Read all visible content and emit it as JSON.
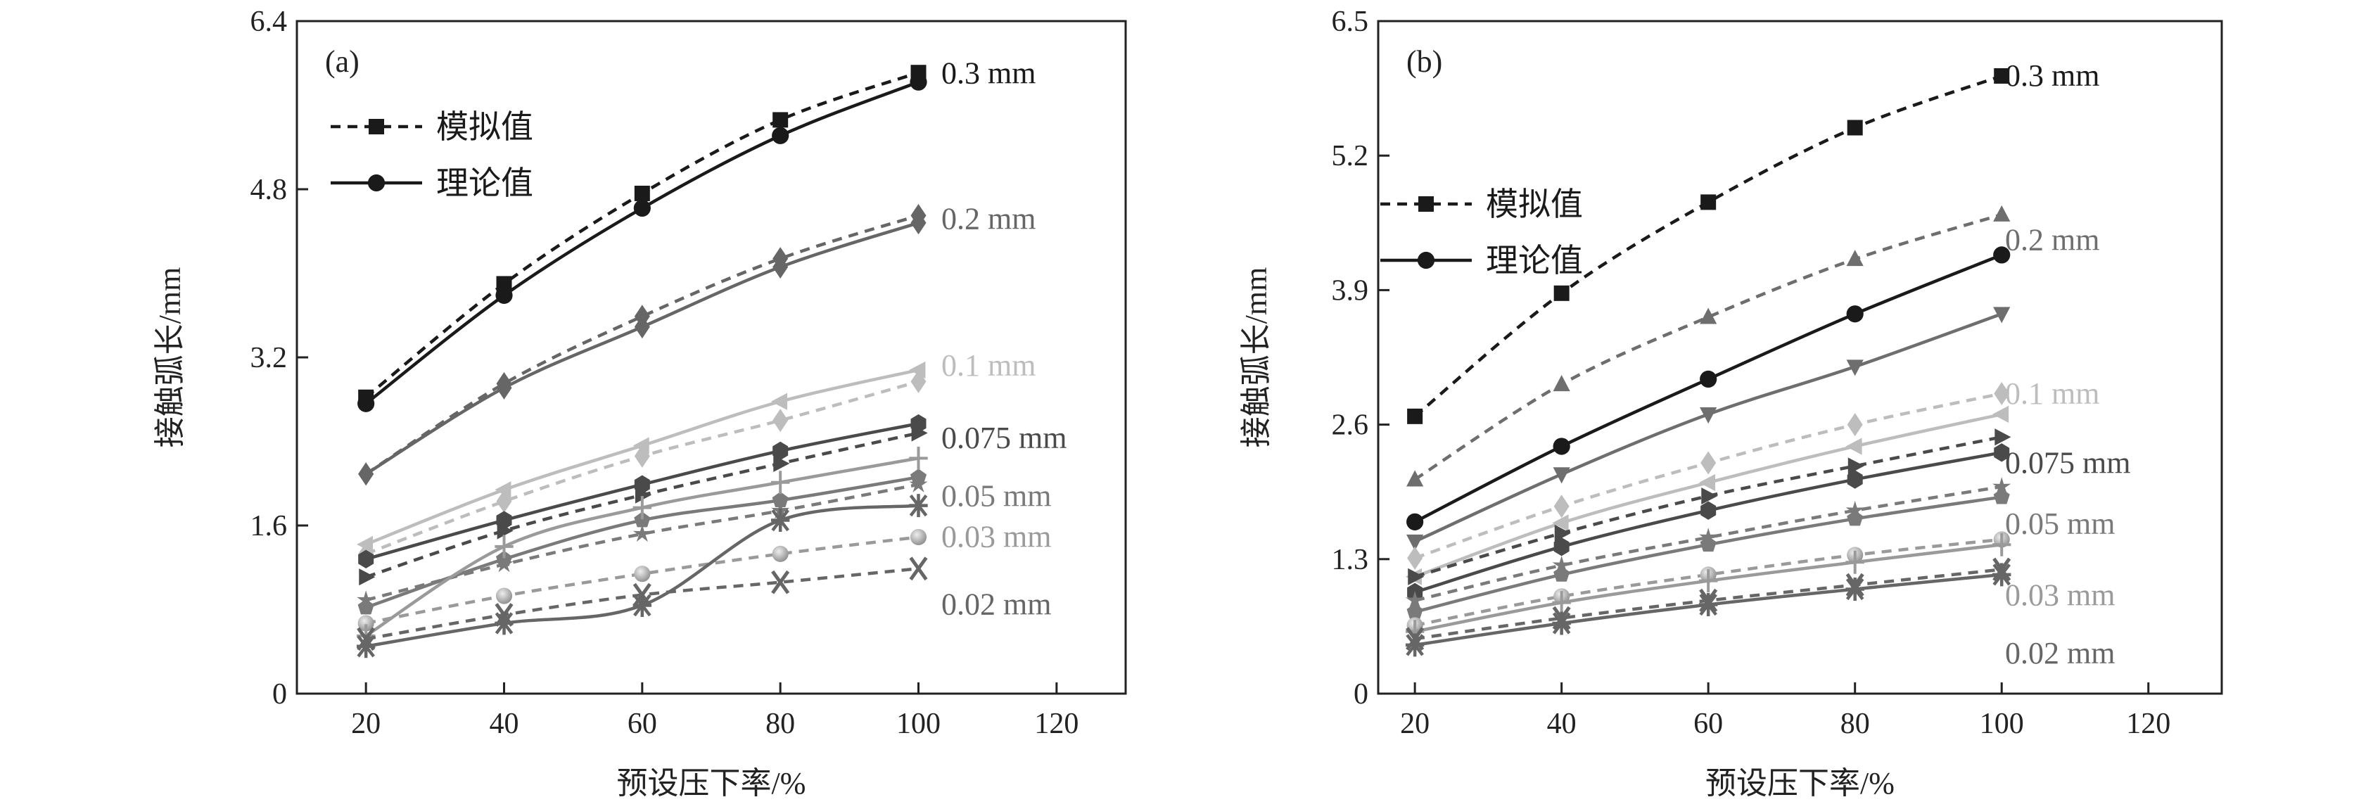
{
  "chart_data": [
    {
      "type": "line",
      "panel_label": "(a)",
      "xlabel": "预设压下率/%",
      "ylabel": "接触弧长/mm",
      "xlim": [
        10,
        130
      ],
      "ylim": [
        0,
        6.4
      ],
      "xticks": [
        20,
        40,
        60,
        80,
        100,
        120
      ],
      "yticks": [
        0,
        1.6,
        3.2,
        4.8,
        6.4
      ],
      "ytick_labels": [
        "0",
        "1.6",
        "3.2",
        "4.8",
        "6.4"
      ],
      "grid": false,
      "legend": {
        "placement": "top-left",
        "entries": [
          {
            "label": "模拟值",
            "style": "dashed",
            "marker": "square"
          },
          {
            "label": "理论值",
            "style": "solid",
            "marker": "circle"
          }
        ]
      },
      "x": [
        20,
        40,
        60,
        80,
        100
      ],
      "groups": [
        {
          "label": "0.3 mm",
          "color": "#1a1a1a",
          "simulated": {
            "marker": "square",
            "values": [
              2.82,
              3.9,
              4.76,
              5.46,
              5.91
            ]
          },
          "theoretical": {
            "marker": "circle",
            "values": [
              2.76,
              3.79,
              4.62,
              5.31,
              5.82
            ]
          }
        },
        {
          "label": "0.2 mm",
          "color": "#666666",
          "simulated": {
            "marker": "diamond",
            "values": [
              2.09,
              2.95,
              3.59,
              4.14,
              4.55
            ]
          },
          "theoretical": {
            "marker": "diamond",
            "values": [
              2.09,
              2.91,
              3.49,
              4.06,
              4.48
            ]
          }
        },
        {
          "label": "0.1 mm",
          "color": "#bdbdbd",
          "simulated": {
            "marker": "diamond",
            "values": [
              1.33,
              1.83,
              2.26,
              2.6,
              2.97
            ]
          },
          "theoretical": {
            "marker": "triangle-left",
            "values": [
              1.42,
              1.94,
              2.36,
              2.78,
              3.08
            ]
          }
        },
        {
          "label": "0.075 mm",
          "color": "#4a4a4a",
          "simulated": {
            "marker": "triangle-right",
            "values": [
              1.11,
              1.55,
              1.89,
              2.19,
              2.48
            ]
          },
          "theoretical": {
            "marker": "hexagon",
            "values": [
              1.28,
              1.65,
              1.99,
              2.31,
              2.57
            ]
          }
        },
        {
          "label": "0.05 mm",
          "color": "#7a7a7a",
          "simulated": {
            "marker": "star",
            "values": [
              0.89,
              1.23,
              1.52,
              1.74,
              1.99
            ]
          },
          "theoretical": {
            "marker": "pentagon",
            "values": [
              0.82,
              1.28,
              1.65,
              1.84,
              2.06
            ]
          }
        },
        {
          "label": "0.03 mm",
          "color": "#9a9a9a",
          "simulated": {
            "marker": "sphere",
            "values": [
              0.67,
              0.93,
              1.14,
              1.33,
              1.49
            ]
          },
          "theoretical": {
            "marker": "plus",
            "values": [
              0.55,
              1.4,
              1.77,
              2.01,
              2.24
            ]
          }
        },
        {
          "label": "0.02 mm",
          "color": "#666666",
          "simulated": {
            "marker": "x",
            "values": [
              0.52,
              0.75,
              0.94,
              1.06,
              1.19
            ]
          },
          "theoretical": {
            "marker": "asterisk",
            "values": [
              0.45,
              0.67,
              0.84,
              1.65,
              1.79
            ]
          }
        }
      ]
    },
    {
      "type": "line",
      "panel_label": "(b)",
      "xlabel": "预设压下率/%",
      "ylabel": "接触弧长/mm",
      "xlim": [
        15,
        130
      ],
      "ylim": [
        0,
        6.5
      ],
      "xticks": [
        20,
        40,
        60,
        80,
        100,
        120
      ],
      "yticks": [
        0,
        1.3,
        2.6,
        3.9,
        5.2,
        6.5
      ],
      "ytick_labels": [
        "0",
        "1.3",
        "2.6",
        "3.9",
        "5.2",
        "6.5"
      ],
      "grid": false,
      "legend": {
        "placement": "top-left",
        "entries": [
          {
            "label": "模拟值",
            "style": "dashed",
            "marker": "square"
          },
          {
            "label": "理论值",
            "style": "solid",
            "marker": "circle"
          }
        ]
      },
      "x": [
        20,
        40,
        60,
        80,
        100
      ],
      "groups": [
        {
          "label": "0.3 mm",
          "color": "#1a1a1a",
          "simulated": {
            "marker": "square",
            "values": [
              2.68,
              3.87,
              4.75,
              5.47,
              5.97
            ]
          },
          "theoretical": {
            "marker": "circle",
            "values": [
              1.66,
              2.39,
              3.04,
              3.67,
              4.24
            ]
          }
        },
        {
          "label": "0.2 mm",
          "color": "#6e6e6e",
          "simulated": {
            "marker": "triangle-up",
            "values": [
              2.07,
              2.99,
              3.64,
              4.2,
              4.63
            ]
          },
          "theoretical": {
            "marker": "triangle-down",
            "values": [
              1.47,
              2.12,
              2.7,
              3.16,
              3.67
            ]
          }
        },
        {
          "label": "0.1 mm",
          "color": "#bdbdbd",
          "simulated": {
            "marker": "diamond",
            "values": [
              1.31,
              1.81,
              2.23,
              2.6,
              2.9
            ]
          },
          "theoretical": {
            "marker": "triangle-left",
            "values": [
              1.13,
              1.65,
              2.04,
              2.39,
              2.7
            ]
          }
        },
        {
          "label": "0.075 mm",
          "color": "#4a4a4a",
          "simulated": {
            "marker": "triangle-right",
            "values": [
              1.13,
              1.55,
              1.91,
              2.2,
              2.48
            ]
          },
          "theoretical": {
            "marker": "hexagon",
            "values": [
              0.98,
              1.42,
              1.77,
              2.07,
              2.33
            ]
          }
        },
        {
          "label": "0.05 mm",
          "color": "#7a7a7a",
          "simulated": {
            "marker": "star",
            "values": [
              0.9,
              1.24,
              1.51,
              1.77,
              2.0
            ]
          },
          "theoretical": {
            "marker": "pentagon",
            "values": [
              0.79,
              1.15,
              1.44,
              1.69,
              1.9
            ]
          }
        },
        {
          "label": "0.03 mm",
          "color": "#9a9a9a",
          "simulated": {
            "marker": "sphere",
            "values": [
              0.66,
              0.94,
              1.15,
              1.34,
              1.49
            ]
          },
          "theoretical": {
            "marker": "plus",
            "values": [
              0.6,
              0.88,
              1.09,
              1.27,
              1.44
            ]
          }
        },
        {
          "label": "0.02 mm",
          "color": "#666666",
          "simulated": {
            "marker": "x",
            "values": [
              0.53,
              0.73,
              0.9,
              1.05,
              1.2
            ]
          },
          "theoretical": {
            "marker": "asterisk",
            "values": [
              0.47,
              0.68,
              0.86,
              1.01,
              1.15
            ]
          }
        }
      ]
    }
  ]
}
